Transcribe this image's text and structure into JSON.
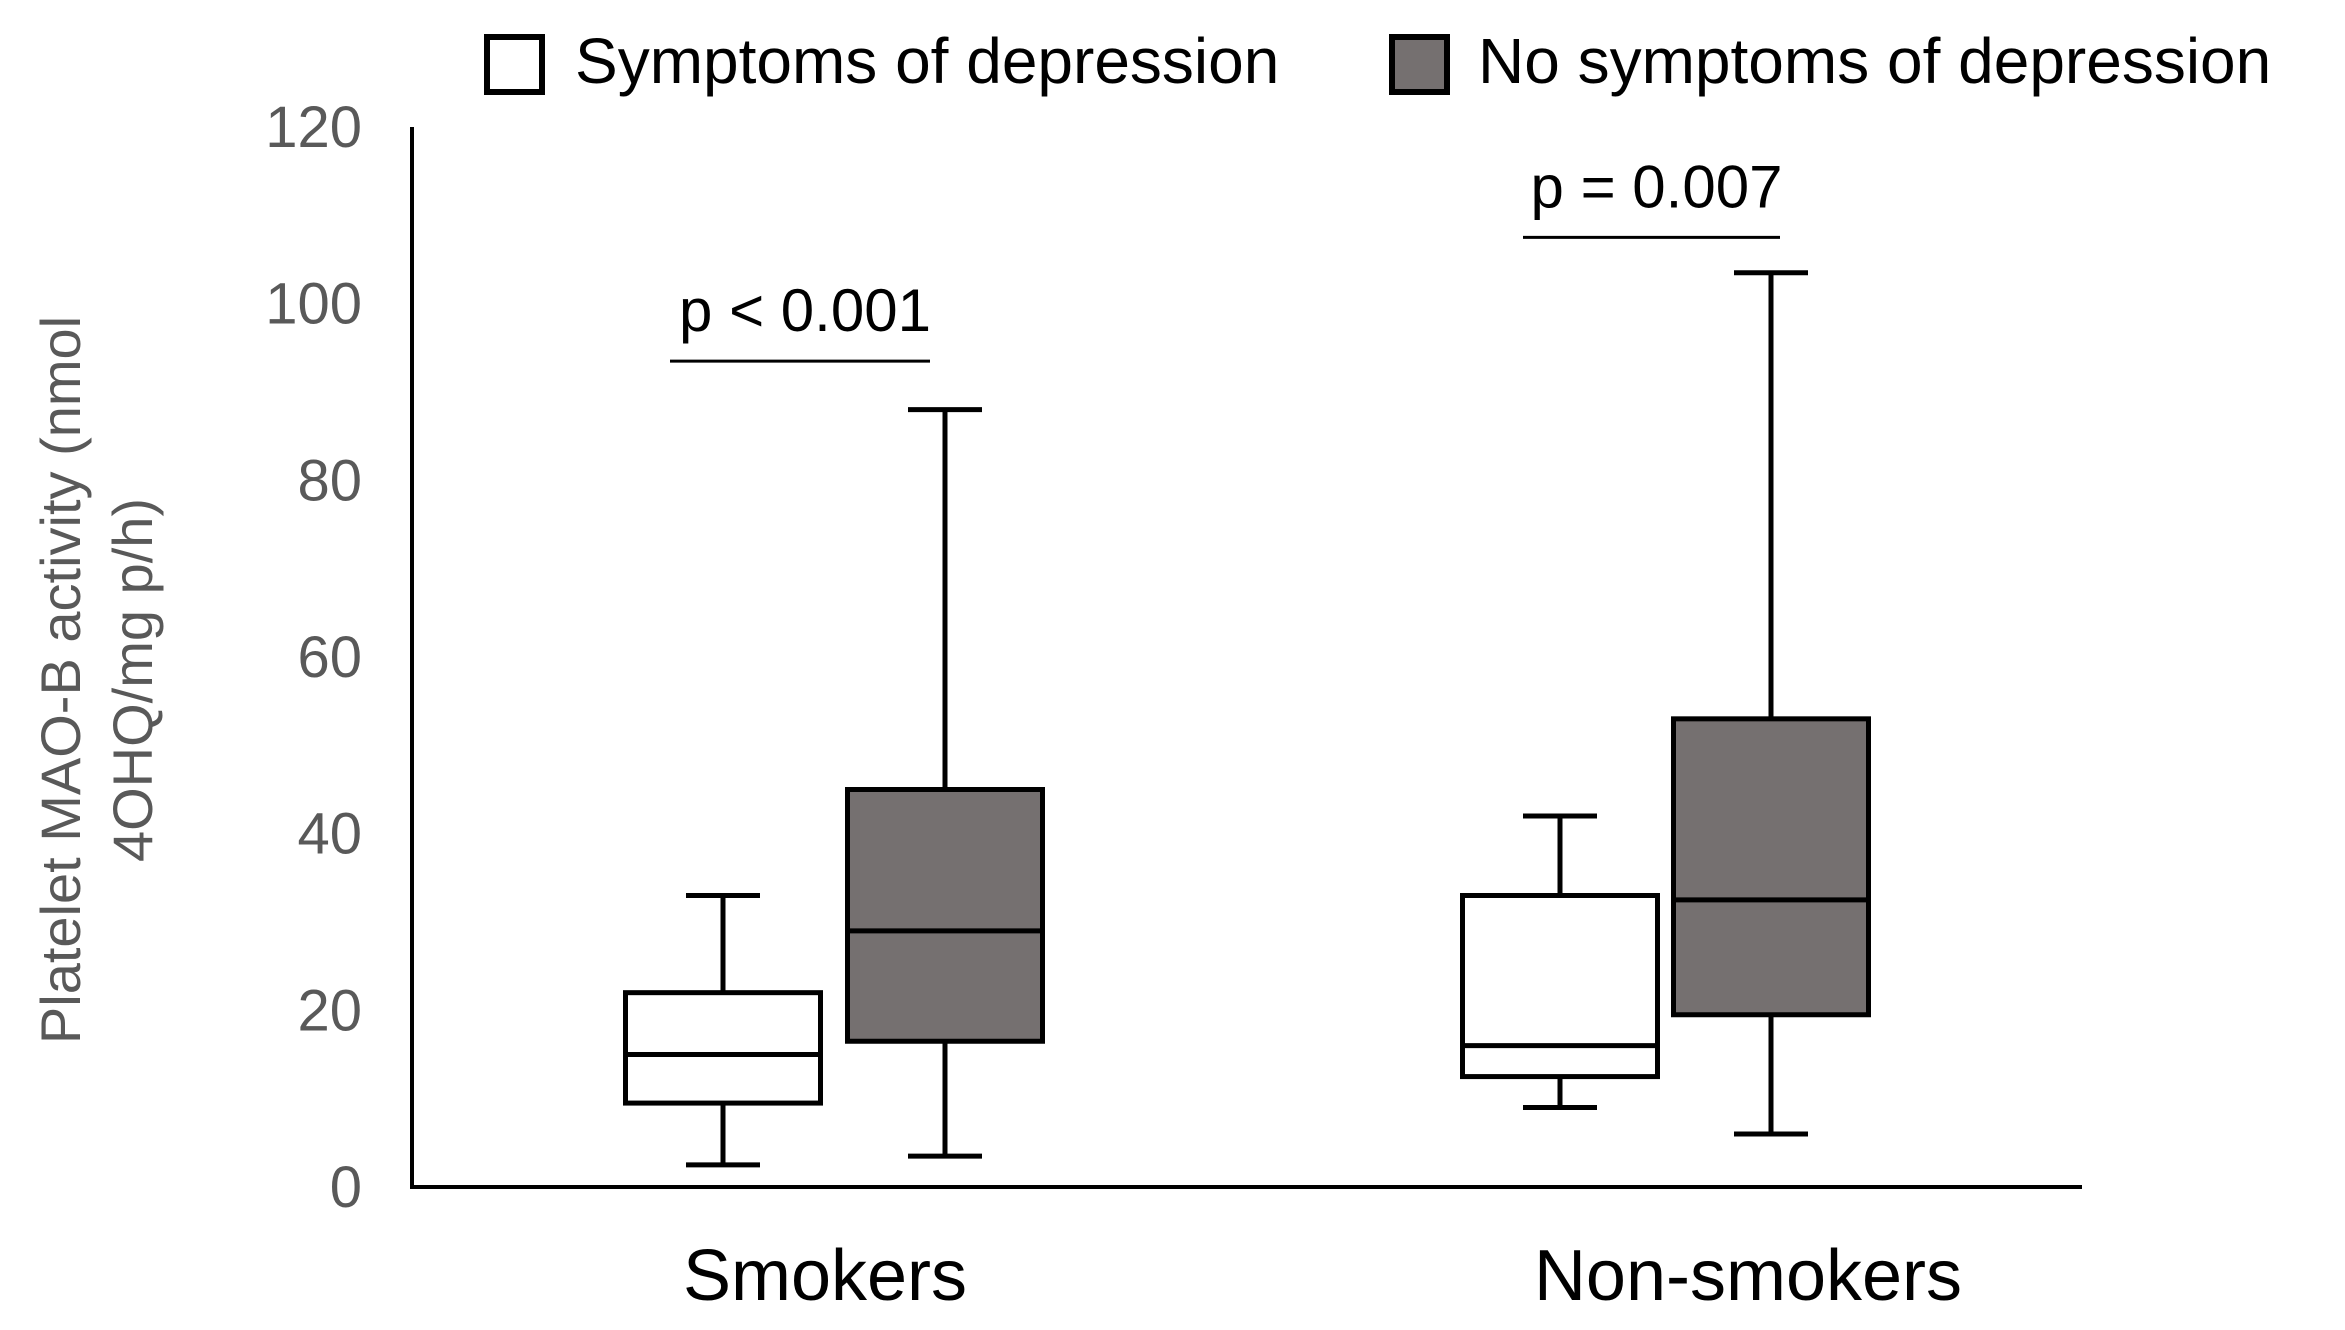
{
  "chart_data": {
    "type": "boxplot",
    "title": "",
    "xlabel": "",
    "ylabel_lines": [
      "Platelet MAO-B activity (nmol",
      "4OHQ/mg p/h)"
    ],
    "ylim": [
      0,
      120
    ],
    "yticks": [
      0,
      20,
      40,
      60,
      80,
      100,
      120
    ],
    "categories": [
      "Smokers",
      "Non-smokers"
    ],
    "legend_position": "top",
    "series": [
      {
        "name": "Symptoms of depression",
        "color": "#ffffff",
        "boxes": [
          {
            "min": 2.5,
            "q1": 9.5,
            "median": 15,
            "q3": 22,
            "max": 33
          },
          {
            "min": 9,
            "q1": 12.5,
            "median": 16,
            "q3": 33,
            "max": 42
          }
        ]
      },
      {
        "name": "No symptoms of depression",
        "color": "#757070",
        "boxes": [
          {
            "min": 3.5,
            "q1": 16.5,
            "median": 29,
            "q3": 45,
            "max": 88
          },
          {
            "min": 6,
            "q1": 19.5,
            "median": 32.5,
            "q3": 53,
            "max": 103.5
          }
        ]
      }
    ],
    "annotations": [
      {
        "category": "Smokers",
        "text": "p < 0.001",
        "bracket_y": 93.5
      },
      {
        "category": "Non-smokers",
        "text": "p = 0.007",
        "bracket_y": 107.5
      }
    ]
  }
}
